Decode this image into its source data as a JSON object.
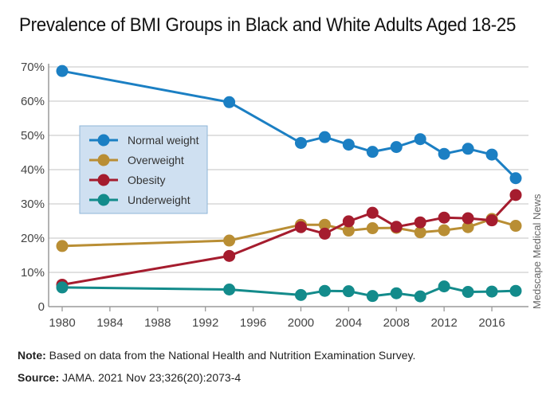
{
  "header": {
    "title": "Prevalence of BMI Groups in Black and White Adults Aged 18-25"
  },
  "footer": {
    "note_label": "Note:",
    "note_text": " Based on data from the National Health and Nutrition Examination Survey.",
    "source_label": "Source:",
    "source_text": " JAMA. 2021 Nov 23;326(20):2073-4"
  },
  "credit": "Medscape Medical News",
  "chart_data": {
    "type": "line",
    "title": "Prevalence of BMI Groups in Black and White Adults Aged 18-25",
    "xlabel": "",
    "ylabel": "",
    "xlim": [
      1980,
      2018
    ],
    "ylim": [
      0,
      70
    ],
    "x_ticks": [
      1980,
      1984,
      1988,
      1992,
      1996,
      2000,
      2004,
      2008,
      2012,
      2016
    ],
    "y_ticks": [
      0,
      10,
      20,
      30,
      40,
      50,
      60,
      70
    ],
    "y_tick_labels": [
      "0",
      "10%",
      "20%",
      "30%",
      "40%",
      "50%",
      "60%",
      "70%"
    ],
    "grid": "horizontal",
    "legend_position": "upper-left",
    "x": [
      1980,
      1994,
      2000,
      2002,
      2004,
      2006,
      2008,
      2010,
      2012,
      2014,
      2016,
      2018
    ],
    "series": [
      {
        "name": "Normal weight",
        "color": "#1b7fc3",
        "values": [
          68.8,
          59.7,
          47.8,
          49.5,
          47.3,
          45.2,
          46.6,
          48.9,
          44.6,
          46.1,
          44.4,
          37.5
        ]
      },
      {
        "name": "Overweight",
        "color": "#b98e34",
        "values": [
          17.7,
          19.3,
          23.9,
          23.9,
          22.2,
          22.9,
          23.0,
          21.7,
          22.3,
          23.2,
          25.6,
          23.6
        ]
      },
      {
        "name": "Obesity",
        "color": "#a51c2e",
        "values": [
          6.4,
          14.8,
          23.2,
          21.3,
          24.9,
          27.4,
          23.3,
          24.6,
          26.0,
          25.8,
          25.2,
          32.6
        ]
      },
      {
        "name": "Underweight",
        "color": "#138b8b",
        "values": [
          5.6,
          5.0,
          3.4,
          4.6,
          4.5,
          3.1,
          3.9,
          3.0,
          5.9,
          4.3,
          4.4,
          4.6
        ]
      }
    ]
  }
}
